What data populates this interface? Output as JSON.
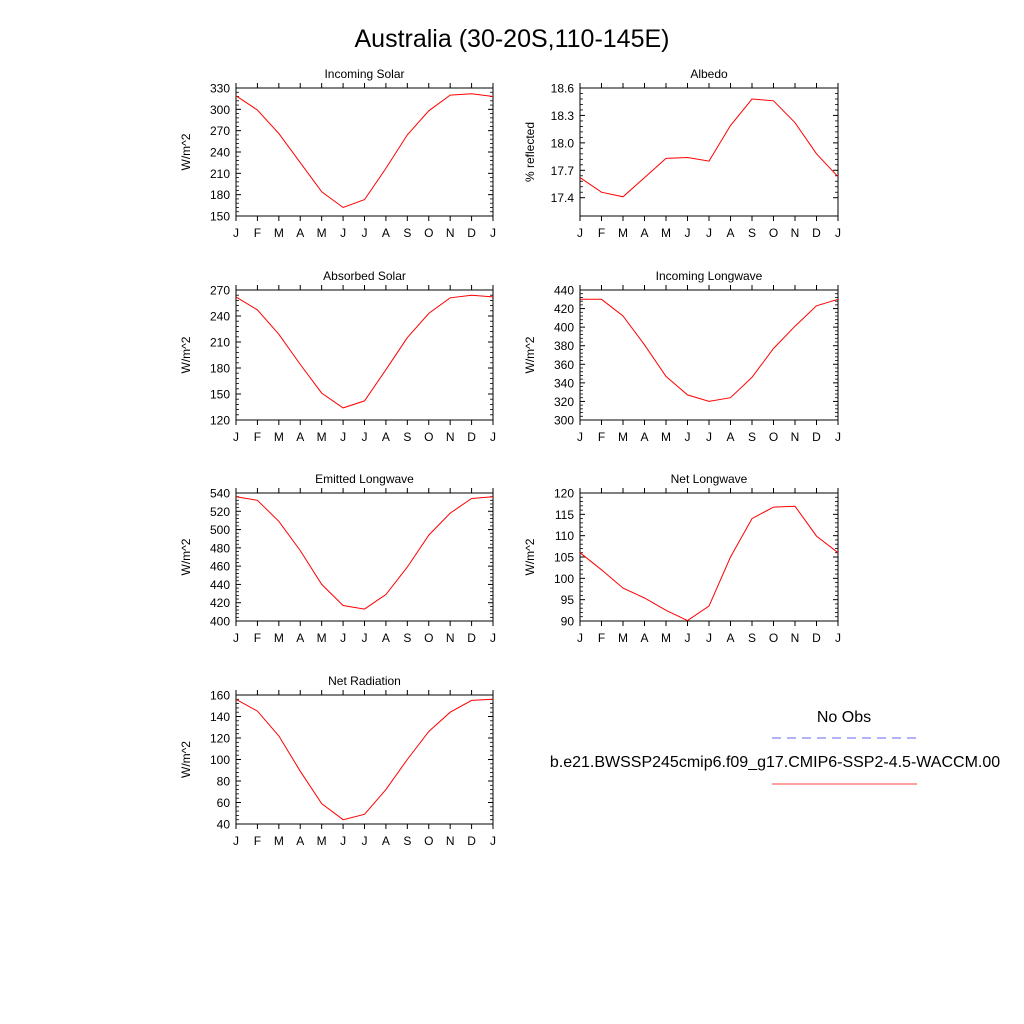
{
  "figure": {
    "title": "Australia (30-20S,110-145E)"
  },
  "legend": {
    "entries": [
      {
        "label": "No Obs",
        "color": "#3333ee",
        "style": "dashed"
      },
      {
        "label": "b.e21.BWSSP245cmip6.f09_g17.CMIP6-SSP2-4.5-WACCM.00",
        "color": "#ff0000",
        "style": "solid"
      }
    ]
  },
  "chart_data": [
    {
      "type": "line",
      "title": "Incoming Solar",
      "xlabel": "",
      "ylabel": "W/m^2",
      "categories": [
        "J",
        "F",
        "M",
        "A",
        "M",
        "J",
        "J",
        "A",
        "S",
        "O",
        "N",
        "D",
        "J"
      ],
      "ylim": [
        150,
        330
      ],
      "yticks": [
        150,
        180,
        210,
        240,
        270,
        300,
        330
      ],
      "series": [
        {
          "color": "#ff0000",
          "values": [
            319,
            299,
            266,
            225,
            184,
            162,
            173,
            217,
            264,
            298,
            320,
            322,
            318
          ]
        }
      ]
    },
    {
      "type": "line",
      "title": "Albedo",
      "xlabel": "",
      "ylabel": "% reflected",
      "categories": [
        "J",
        "F",
        "M",
        "A",
        "M",
        "J",
        "J",
        "A",
        "S",
        "O",
        "N",
        "D",
        "J"
      ],
      "ylim": [
        17.2,
        18.6
      ],
      "yticks": [
        17.4,
        17.7,
        18.0,
        18.3,
        18.6
      ],
      "series": [
        {
          "color": "#ff0000",
          "values": [
            17.62,
            17.46,
            17.41,
            17.62,
            17.83,
            17.84,
            17.8,
            18.19,
            18.48,
            18.46,
            18.22,
            17.88,
            17.63
          ]
        }
      ]
    },
    {
      "type": "line",
      "title": "Absorbed Solar",
      "xlabel": "",
      "ylabel": "W/m^2",
      "categories": [
        "J",
        "F",
        "M",
        "A",
        "M",
        "J",
        "J",
        "A",
        "S",
        "O",
        "N",
        "D",
        "J"
      ],
      "ylim": [
        120,
        270
      ],
      "yticks": [
        120,
        150,
        180,
        210,
        240,
        270
      ],
      "series": [
        {
          "color": "#ff0000",
          "values": [
            262,
            247,
            219,
            184,
            151,
            134,
            142,
            178,
            215,
            243,
            261,
            264,
            262
          ]
        }
      ]
    },
    {
      "type": "line",
      "title": "Incoming Longwave",
      "xlabel": "",
      "ylabel": "W/m^2",
      "categories": [
        "J",
        "F",
        "M",
        "A",
        "M",
        "J",
        "J",
        "A",
        "S",
        "O",
        "N",
        "D",
        "J"
      ],
      "ylim": [
        300,
        440
      ],
      "yticks": [
        300,
        320,
        340,
        360,
        380,
        400,
        420,
        440
      ],
      "series": [
        {
          "color": "#ff0000",
          "values": [
            430,
            430,
            412,
            381,
            347,
            327,
            320,
            324,
            346,
            377,
            401,
            423,
            430
          ]
        }
      ]
    },
    {
      "type": "line",
      "title": "Emitted Longwave",
      "xlabel": "",
      "ylabel": "W/m^2",
      "categories": [
        "J",
        "F",
        "M",
        "A",
        "M",
        "J",
        "J",
        "A",
        "S",
        "O",
        "N",
        "D",
        "J"
      ],
      "ylim": [
        400,
        540
      ],
      "yticks": [
        400,
        420,
        440,
        460,
        480,
        500,
        520,
        540
      ],
      "series": [
        {
          "color": "#ff0000",
          "values": [
            536,
            532,
            509,
            477,
            440,
            417,
            413,
            429,
            459,
            494,
            518,
            534,
            536
          ]
        }
      ]
    },
    {
      "type": "line",
      "title": "Net Longwave",
      "xlabel": "",
      "ylabel": "W/m^2",
      "categories": [
        "J",
        "F",
        "M",
        "A",
        "M",
        "J",
        "J",
        "A",
        "S",
        "O",
        "N",
        "D",
        "J"
      ],
      "ylim": [
        90,
        120
      ],
      "yticks": [
        90,
        95,
        100,
        105,
        110,
        115,
        120
      ],
      "series": [
        {
          "color": "#ff0000",
          "values": [
            106,
            102,
            97.7,
            95.4,
            92.5,
            90.1,
            93.5,
            105,
            114,
            116.7,
            116.9,
            109.9,
            106
          ]
        }
      ]
    },
    {
      "type": "line",
      "title": "Net Radiation",
      "xlabel": "",
      "ylabel": "W/m^2",
      "categories": [
        "J",
        "F",
        "M",
        "A",
        "M",
        "J",
        "J",
        "A",
        "S",
        "O",
        "N",
        "D",
        "J"
      ],
      "ylim": [
        40,
        160
      ],
      "yticks": [
        40,
        60,
        80,
        100,
        120,
        140,
        160
      ],
      "series": [
        {
          "color": "#ff0000",
          "values": [
            156,
            145,
            122,
            89,
            59,
            44,
            49,
            72,
            100,
            126,
            144,
            155,
            156
          ]
        }
      ]
    }
  ]
}
